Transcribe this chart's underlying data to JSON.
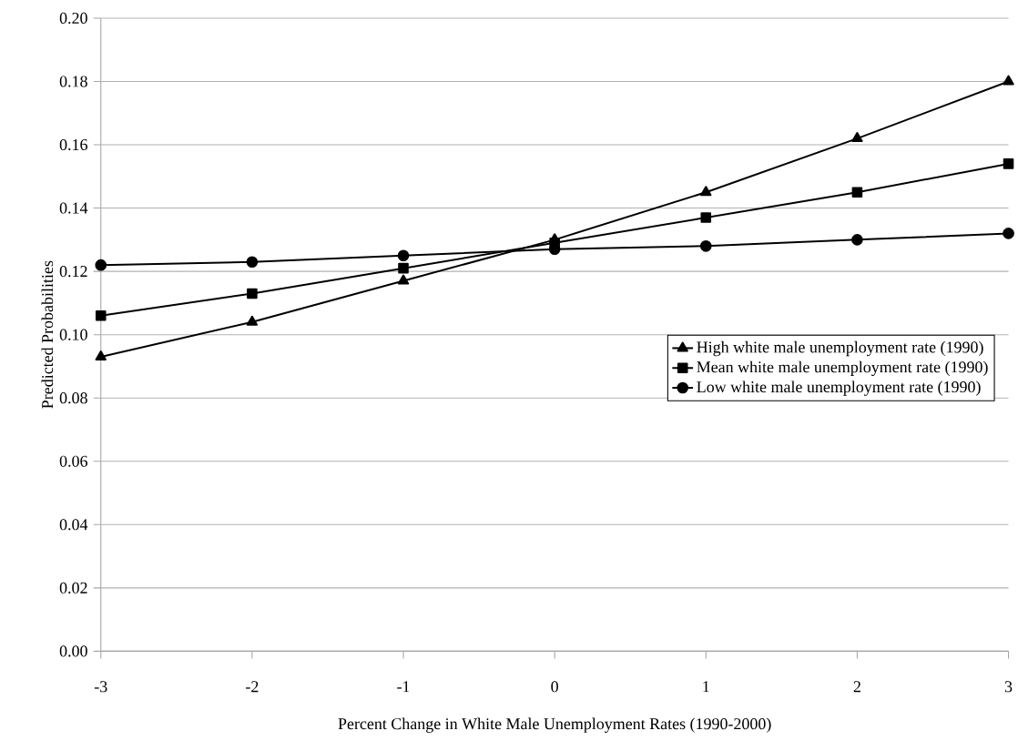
{
  "chart_data": {
    "type": "line",
    "xlabel": "Percent Change in White Male Unemployment Rates (1990-2000)",
    "ylabel": "Predicted Probabilities",
    "x": [
      -3,
      -2,
      -1,
      0,
      1,
      2,
      3
    ],
    "series": [
      {
        "name": "High white male unemployment rate (1990)",
        "color": "#000000",
        "marker": "triangle",
        "values": [
          0.093,
          0.104,
          0.117,
          0.13,
          0.145,
          0.162,
          0.18
        ]
      },
      {
        "name": "Mean white male unemployment rate (1990)",
        "color": "#000000",
        "marker": "square",
        "values": [
          0.106,
          0.113,
          0.121,
          0.129,
          0.137,
          0.145,
          0.154
        ]
      },
      {
        "name": "Low white male unemployment rate (1990)",
        "color": "#000000",
        "marker": "circle",
        "values": [
          0.122,
          0.123,
          0.125,
          0.127,
          0.128,
          0.13,
          0.132
        ]
      }
    ],
    "xlim": [
      -3,
      3
    ],
    "xticks": [
      -3,
      -2,
      -1,
      0,
      1,
      2,
      3
    ],
    "ylim": [
      0,
      0.2
    ],
    "yticks": [
      {
        "value": 0,
        "label": "0.00"
      },
      {
        "value": 0.02,
        "label": "0.02"
      },
      {
        "value": 0.04,
        "label": "0.04"
      },
      {
        "value": 0.06,
        "label": "0.06"
      },
      {
        "value": 0.08,
        "label": "0.08"
      },
      {
        "value": 0.1,
        "label": "0.10"
      },
      {
        "value": 0.12,
        "label": "0.12"
      },
      {
        "value": 0.14,
        "label": "0.14"
      },
      {
        "value": 0.16,
        "label": "0.16"
      },
      {
        "value": 0.18,
        "label": "0.18"
      },
      {
        "value": 0.2,
        "label": "0.20"
      }
    ],
    "grid": "y",
    "legend": "right",
    "line_style": "solid"
  }
}
